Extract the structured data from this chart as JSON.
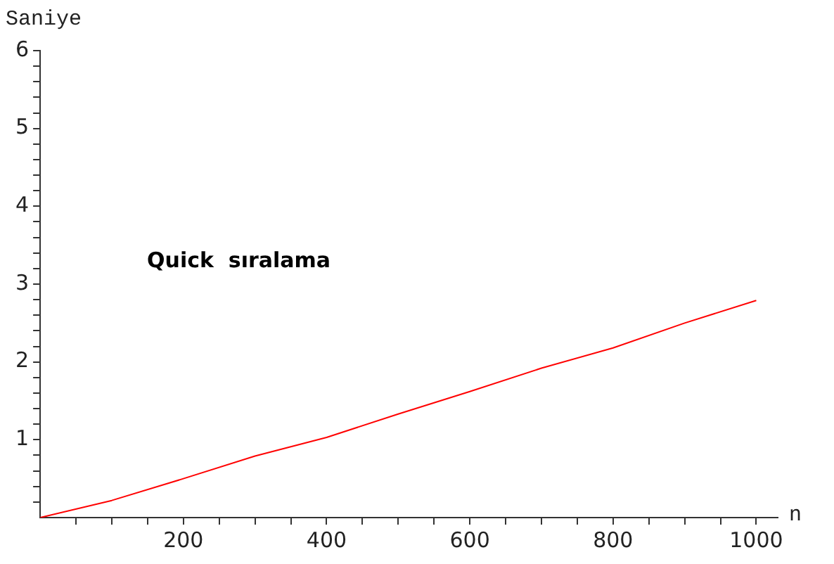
{
  "chart_data": {
    "type": "line",
    "xlabel": "n",
    "ylabel": "Saniye",
    "annotations": [
      "Quick  sıralama"
    ],
    "x": [
      0,
      100,
      200,
      300,
      400,
      500,
      600,
      700,
      800,
      900,
      1000
    ],
    "series": [
      {
        "color": "#ff0000",
        "values": [
          0,
          0.22,
          0.5,
          0.79,
          1.03,
          1.33,
          1.62,
          1.92,
          2.18,
          2.5,
          2.79
        ]
      }
    ],
    "xlim": [
      0,
      1030
    ],
    "ylim": [
      0,
      6
    ],
    "xticks": [
      {
        "value": 50,
        "label": null
      },
      {
        "value": 100,
        "label": null
      },
      {
        "value": 150,
        "label": null
      },
      200,
      {
        "value": 250,
        "label": null
      },
      {
        "value": 300,
        "label": null
      },
      {
        "value": 350,
        "label": null
      },
      400,
      {
        "value": 450,
        "label": null
      },
      {
        "value": 500,
        "label": null
      },
      {
        "value": 550,
        "label": null
      },
      600,
      {
        "value": 650,
        "label": null
      },
      {
        "value": 700,
        "label": null
      },
      {
        "value": 750,
        "label": null
      },
      800,
      {
        "value": 850,
        "label": null
      },
      {
        "value": 900,
        "label": null
      },
      {
        "value": 950,
        "label": null
      },
      1000
    ],
    "yticks": [
      {
        "value": 0.2,
        "label": null
      },
      {
        "value": 0.4,
        "label": null
      },
      {
        "value": 0.6,
        "label": null
      },
      {
        "value": 0.8,
        "label": null
      },
      1,
      {
        "value": 1.2,
        "label": null
      },
      {
        "value": 1.4,
        "label": null
      },
      {
        "value": 1.6,
        "label": null
      },
      {
        "value": 1.8,
        "label": null
      },
      2,
      {
        "value": 2.2,
        "label": null
      },
      {
        "value": 2.4,
        "label": null
      },
      {
        "value": 2.6,
        "label": null
      },
      {
        "value": 2.8,
        "label": null
      },
      3,
      {
        "value": 3.2,
        "label": null
      },
      {
        "value": 3.4,
        "label": null
      },
      {
        "value": 3.6,
        "label": null
      },
      {
        "value": 3.8,
        "label": null
      },
      4,
      {
        "value": 4.2,
        "label": null
      },
      {
        "value": 4.4,
        "label": null
      },
      {
        "value": 4.6,
        "label": null
      },
      {
        "value": 4.8,
        "label": null
      },
      5,
      {
        "value": 5.2,
        "label": null
      },
      {
        "value": 5.4,
        "label": null
      },
      {
        "value": 5.6,
        "label": null
      },
      {
        "value": 5.8,
        "label": null
      },
      6
    ],
    "grid": false,
    "legend": false,
    "marker": "none",
    "line_style": "solid"
  }
}
